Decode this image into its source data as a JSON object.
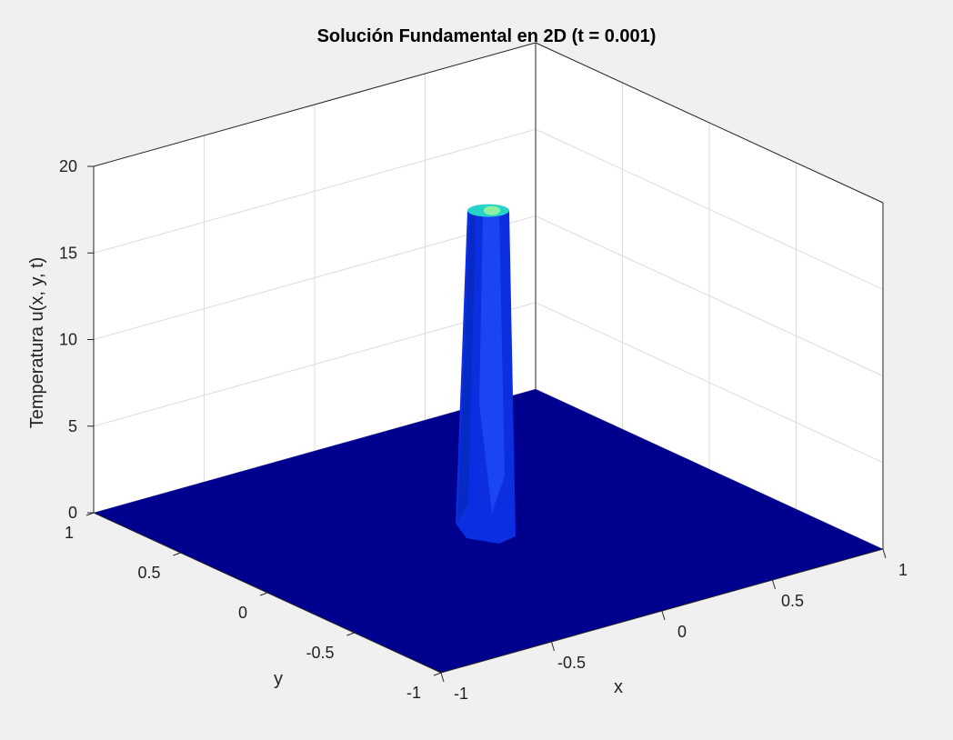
{
  "chart_data": {
    "type": "surface",
    "title": "Solución Fundamental en 2D (t = 0.001)",
    "xlabel": "x",
    "ylabel": "y",
    "zlabel": "Temperatura u(x, y, t)",
    "xlim": [
      -1,
      1
    ],
    "ylim": [
      -1,
      1
    ],
    "zlim": [
      0,
      20
    ],
    "x_ticks": [
      -1,
      -0.5,
      0,
      0.5,
      1
    ],
    "y_ticks": [
      -1,
      -0.5,
      0,
      0.5,
      1
    ],
    "z_ticks": [
      0,
      5,
      10,
      15,
      20
    ],
    "x_tick_labels": [
      "-1",
      "-0.5",
      "0",
      "0.5",
      "1"
    ],
    "y_tick_labels": [
      "-1",
      "-0.5",
      "0",
      "0.5",
      "1"
    ],
    "z_tick_labels": [
      "0",
      "5",
      "10",
      "15",
      "20"
    ],
    "grid": true,
    "colormap": "jet",
    "view": "3d",
    "peak": {
      "x": 0,
      "y": 0,
      "z": 18.5
    },
    "base_value": 0,
    "colors": {
      "base": "#00008f",
      "column": "#0a2ee0",
      "column_light": "#2a5bff",
      "top": "#27d2c8",
      "top_light": "#8cf0a0",
      "grid": "#dcdcdc",
      "axis": "#262626",
      "background": "#f0f0f0",
      "axes_face": "#ffffff"
    }
  }
}
